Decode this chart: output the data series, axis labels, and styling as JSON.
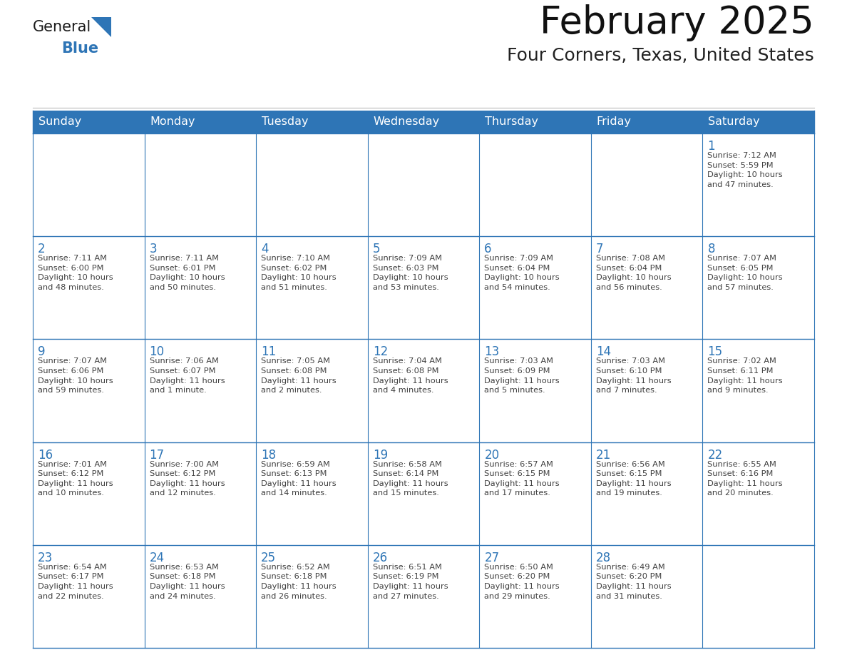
{
  "title": "February 2025",
  "subtitle": "Four Corners, Texas, United States",
  "header_bg": "#2E75B6",
  "header_text_color": "#FFFFFF",
  "cell_bg": "#FFFFFF",
  "cell_border_color": "#2E75B6",
  "day_number_color": "#2E75B6",
  "cell_text_color": "#404040",
  "days_of_week": [
    "Sunday",
    "Monday",
    "Tuesday",
    "Wednesday",
    "Thursday",
    "Friday",
    "Saturday"
  ],
  "weeks": [
    [
      {
        "day": "",
        "info": ""
      },
      {
        "day": "",
        "info": ""
      },
      {
        "day": "",
        "info": ""
      },
      {
        "day": "",
        "info": ""
      },
      {
        "day": "",
        "info": ""
      },
      {
        "day": "",
        "info": ""
      },
      {
        "day": "1",
        "info": "Sunrise: 7:12 AM\nSunset: 5:59 PM\nDaylight: 10 hours\nand 47 minutes."
      }
    ],
    [
      {
        "day": "2",
        "info": "Sunrise: 7:11 AM\nSunset: 6:00 PM\nDaylight: 10 hours\nand 48 minutes."
      },
      {
        "day": "3",
        "info": "Sunrise: 7:11 AM\nSunset: 6:01 PM\nDaylight: 10 hours\nand 50 minutes."
      },
      {
        "day": "4",
        "info": "Sunrise: 7:10 AM\nSunset: 6:02 PM\nDaylight: 10 hours\nand 51 minutes."
      },
      {
        "day": "5",
        "info": "Sunrise: 7:09 AM\nSunset: 6:03 PM\nDaylight: 10 hours\nand 53 minutes."
      },
      {
        "day": "6",
        "info": "Sunrise: 7:09 AM\nSunset: 6:04 PM\nDaylight: 10 hours\nand 54 minutes."
      },
      {
        "day": "7",
        "info": "Sunrise: 7:08 AM\nSunset: 6:04 PM\nDaylight: 10 hours\nand 56 minutes."
      },
      {
        "day": "8",
        "info": "Sunrise: 7:07 AM\nSunset: 6:05 PM\nDaylight: 10 hours\nand 57 minutes."
      }
    ],
    [
      {
        "day": "9",
        "info": "Sunrise: 7:07 AM\nSunset: 6:06 PM\nDaylight: 10 hours\nand 59 minutes."
      },
      {
        "day": "10",
        "info": "Sunrise: 7:06 AM\nSunset: 6:07 PM\nDaylight: 11 hours\nand 1 minute."
      },
      {
        "day": "11",
        "info": "Sunrise: 7:05 AM\nSunset: 6:08 PM\nDaylight: 11 hours\nand 2 minutes."
      },
      {
        "day": "12",
        "info": "Sunrise: 7:04 AM\nSunset: 6:08 PM\nDaylight: 11 hours\nand 4 minutes."
      },
      {
        "day": "13",
        "info": "Sunrise: 7:03 AM\nSunset: 6:09 PM\nDaylight: 11 hours\nand 5 minutes."
      },
      {
        "day": "14",
        "info": "Sunrise: 7:03 AM\nSunset: 6:10 PM\nDaylight: 11 hours\nand 7 minutes."
      },
      {
        "day": "15",
        "info": "Sunrise: 7:02 AM\nSunset: 6:11 PM\nDaylight: 11 hours\nand 9 minutes."
      }
    ],
    [
      {
        "day": "16",
        "info": "Sunrise: 7:01 AM\nSunset: 6:12 PM\nDaylight: 11 hours\nand 10 minutes."
      },
      {
        "day": "17",
        "info": "Sunrise: 7:00 AM\nSunset: 6:12 PM\nDaylight: 11 hours\nand 12 minutes."
      },
      {
        "day": "18",
        "info": "Sunrise: 6:59 AM\nSunset: 6:13 PM\nDaylight: 11 hours\nand 14 minutes."
      },
      {
        "day": "19",
        "info": "Sunrise: 6:58 AM\nSunset: 6:14 PM\nDaylight: 11 hours\nand 15 minutes."
      },
      {
        "day": "20",
        "info": "Sunrise: 6:57 AM\nSunset: 6:15 PM\nDaylight: 11 hours\nand 17 minutes."
      },
      {
        "day": "21",
        "info": "Sunrise: 6:56 AM\nSunset: 6:15 PM\nDaylight: 11 hours\nand 19 minutes."
      },
      {
        "day": "22",
        "info": "Sunrise: 6:55 AM\nSunset: 6:16 PM\nDaylight: 11 hours\nand 20 minutes."
      }
    ],
    [
      {
        "day": "23",
        "info": "Sunrise: 6:54 AM\nSunset: 6:17 PM\nDaylight: 11 hours\nand 22 minutes."
      },
      {
        "day": "24",
        "info": "Sunrise: 6:53 AM\nSunset: 6:18 PM\nDaylight: 11 hours\nand 24 minutes."
      },
      {
        "day": "25",
        "info": "Sunrise: 6:52 AM\nSunset: 6:18 PM\nDaylight: 11 hours\nand 26 minutes."
      },
      {
        "day": "26",
        "info": "Sunrise: 6:51 AM\nSunset: 6:19 PM\nDaylight: 11 hours\nand 27 minutes."
      },
      {
        "day": "27",
        "info": "Sunrise: 6:50 AM\nSunset: 6:20 PM\nDaylight: 11 hours\nand 29 minutes."
      },
      {
        "day": "28",
        "info": "Sunrise: 6:49 AM\nSunset: 6:20 PM\nDaylight: 11 hours\nand 31 minutes."
      },
      {
        "day": "",
        "info": ""
      }
    ]
  ],
  "fig_width": 11.88,
  "fig_height": 9.18,
  "dpi": 100
}
